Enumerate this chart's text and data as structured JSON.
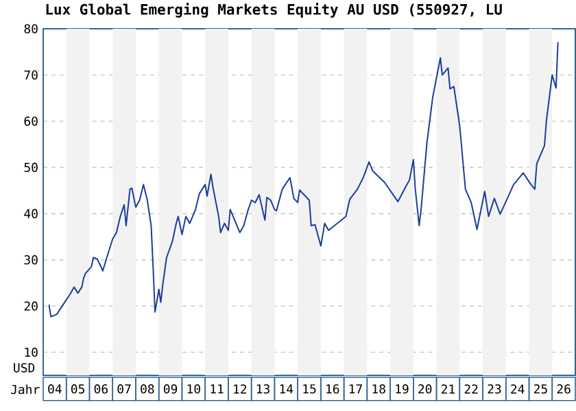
{
  "chart_data": {
    "type": "line",
    "title": "Lux Global Emerging Markets Equity AU USD (550927, LU",
    "xlabel": "Jahr",
    "ylabel": "USD",
    "xlim": [
      "2004",
      "2027"
    ],
    "ylim": [
      5,
      80
    ],
    "yticks": [
      10,
      20,
      30,
      40,
      50,
      60,
      70,
      80
    ],
    "xticks": [
      {
        "value": "2004-07",
        "label": "04"
      },
      {
        "value": "2005-07",
        "label": "05"
      },
      {
        "value": "2006-07",
        "label": "06"
      },
      {
        "value": "2007-07",
        "label": "07"
      },
      {
        "value": "2008-07",
        "label": "08"
      },
      {
        "value": "2009-07",
        "label": "09"
      },
      {
        "value": "2010-07",
        "label": "10"
      },
      {
        "value": "2011-07",
        "label": "11"
      },
      {
        "value": "2012-07",
        "label": "12"
      },
      {
        "value": "2013-07",
        "label": "13"
      },
      {
        "value": "2014-07",
        "label": "14"
      },
      {
        "value": "2015-07",
        "label": "15"
      },
      {
        "value": "2016-07",
        "label": "16"
      },
      {
        "value": "2017-07",
        "label": "17"
      },
      {
        "value": "2018-07",
        "label": "18"
      },
      {
        "value": "2019-07",
        "label": "19"
      },
      {
        "value": "2020-07",
        "label": "20"
      },
      {
        "value": "2021-07",
        "label": "21"
      },
      {
        "value": "2022-07",
        "label": "22"
      },
      {
        "value": "2023-07",
        "label": "23"
      },
      {
        "value": "2024-07",
        "label": "24"
      },
      {
        "value": "2025-07",
        "label": "25"
      },
      {
        "value": "2026-07",
        "label": "26"
      }
    ],
    "bands": [
      {
        "axis": "x",
        "from": "2005",
        "to": "2006",
        "color": "#f2f2f2"
      },
      {
        "axis": "x",
        "from": "2007",
        "to": "2008",
        "color": "#f2f2f2"
      },
      {
        "axis": "x",
        "from": "2009",
        "to": "2010",
        "color": "#f2f2f2"
      },
      {
        "axis": "x",
        "from": "2011",
        "to": "2012",
        "color": "#f2f2f2"
      },
      {
        "axis": "x",
        "from": "2013",
        "to": "2014",
        "color": "#f2f2f2"
      },
      {
        "axis": "x",
        "from": "2015",
        "to": "2016",
        "color": "#f2f2f2"
      },
      {
        "axis": "x",
        "from": "2017",
        "to": "2018",
        "color": "#f2f2f2"
      },
      {
        "axis": "x",
        "from": "2019",
        "to": "2020",
        "color": "#f2f2f2"
      },
      {
        "axis": "x",
        "from": "2021",
        "to": "2022",
        "color": "#f2f2f2"
      },
      {
        "axis": "x",
        "from": "2023",
        "to": "2024",
        "color": "#f2f2f2"
      },
      {
        "axis": "x",
        "from": "2025",
        "to": "2026",
        "color": "#f2f2f2"
      }
    ],
    "grid": "y",
    "marker": "none",
    "line_style": "solid",
    "series": [
      {
        "color": "#1a3c9c",
        "x": [
          "2004-04",
          "2004-05",
          "2004-08",
          "2004-11",
          "2005-03",
          "2005-05",
          "2005-07",
          "2005-09",
          "2005-10",
          "2005-11",
          "2006-02",
          "2006-03",
          "2006-05",
          "2006-07-01",
          "2006-07-28",
          "2006-10",
          "2007-01",
          "2007-03",
          "2007-05",
          "2007-07",
          "2007-08",
          "2007-10",
          "2007-11",
          "2008-01",
          "2008-03",
          "2008-05",
          "2008-07",
          "2008-09",
          "2008-10",
          "2008-11",
          "2009-01",
          "2009-02",
          "2009-03",
          "2009-05",
          "2009-08",
          "2009-10",
          "2009-11",
          "2010-01",
          "2010-03",
          "2010-05",
          "2010-08",
          "2010-10",
          "2011-01",
          "2011-02",
          "2011-04",
          "2011-05",
          "2011-08",
          "2011-09",
          "2011-11",
          "2012-01",
          "2012-02",
          "2012-04",
          "2012-07",
          "2012-09",
          "2012-11",
          "2013-01",
          "2013-03",
          "2013-05",
          "2013-07",
          "2013-08",
          "2013-09",
          "2013-11",
          "2014-01",
          "2014-02",
          "2014-05",
          "2014-09",
          "2014-11",
          "2015-01",
          "2015-02",
          "2015-07",
          "2015-08",
          "2015-10",
          "2016-01",
          "2016-03",
          "2016-05",
          "2017-02",
          "2017-04",
          "2017-08",
          "2017-11",
          "2018-02",
          "2018-04",
          "2018-10",
          "2019-05",
          "2019-09",
          "2019-11",
          "2020-01",
          "2020-02",
          "2020-04",
          "2020-05",
          "2020-08",
          "2020-11",
          "2021-03",
          "2021-04",
          "2021-07",
          "2021-08",
          "2021-10",
          "2022-01",
          "2022-04",
          "2022-07",
          "2022-10",
          "2023-02",
          "2023-04",
          "2023-07",
          "2023-10",
          "2024-01",
          "2024-05",
          "2024-10",
          "2025-02",
          "2025-04",
          "2025-05",
          "2025-09",
          "2025-10",
          "2026-01",
          "2026-03",
          "2026-04"
        ],
        "values": [
          20.3,
          17.7,
          18.2,
          20.1,
          22.6,
          24.1,
          22.8,
          24.1,
          26.1,
          27.1,
          28.5,
          30.5,
          30.2,
          28.5,
          27.6,
          30.5,
          34.5,
          35.9,
          39.4,
          41.9,
          37.4,
          45.3,
          45.5,
          41.4,
          42.9,
          46.3,
          42.9,
          37.4,
          28.5,
          18.7,
          23.6,
          20.8,
          24.6,
          30.5,
          34.0,
          37.9,
          39.4,
          35.5,
          39.4,
          37.9,
          40.9,
          44.3,
          46.3,
          43.8,
          48.5,
          45.8,
          39.4,
          35.9,
          37.9,
          36.4,
          40.9,
          38.9,
          35.9,
          37.4,
          40.4,
          42.9,
          42.4,
          44.1,
          40.4,
          38.6,
          43.5,
          42.9,
          40.9,
          40.6,
          45.3,
          47.8,
          43.3,
          42.4,
          45.1,
          42.9,
          37.4,
          37.6,
          33.0,
          37.9,
          36.4,
          39.4,
          43.1,
          45.3,
          47.8,
          51.2,
          49.2,
          46.8,
          42.6,
          45.8,
          47.3,
          51.7,
          45.3,
          37.4,
          40.9,
          55.2,
          65.1,
          73.7,
          70.0,
          71.5,
          67.0,
          67.5,
          59.1,
          45.3,
          42.4,
          36.6,
          44.8,
          39.4,
          43.3,
          39.9,
          42.6,
          46.3,
          48.8,
          46.3,
          45.3,
          50.8,
          54.7,
          60.1,
          70.0,
          67.2,
          77.1
        ]
      }
    ]
  }
}
